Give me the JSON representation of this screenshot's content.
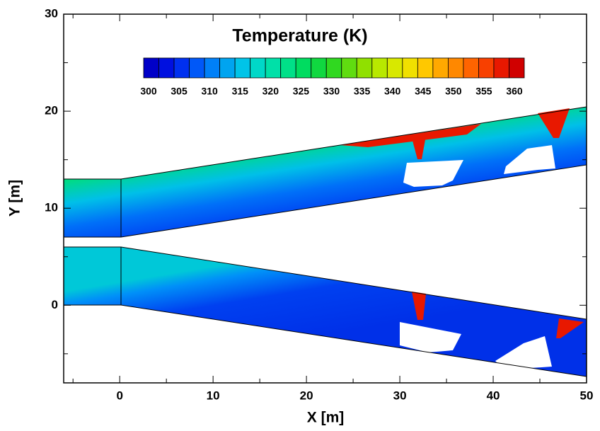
{
  "chart_data": {
    "type": "contour",
    "xlabel": "X [m]",
    "ylabel": "Y [m]",
    "xlim": [
      -6,
      50
    ],
    "ylim": [
      -8,
      30
    ],
    "xticks": [
      0,
      10,
      20,
      30,
      40,
      50
    ],
    "yticks": [
      0,
      10,
      20,
      30
    ],
    "xminorticks": [
      -5,
      5,
      15,
      25,
      35,
      45
    ],
    "yminorticks": [
      -5,
      5,
      15,
      25
    ],
    "colorbar": {
      "title": "Temperature (K)",
      "ticks": [
        300,
        305,
        310,
        315,
        320,
        325,
        330,
        335,
        340,
        345,
        350,
        355,
        360
      ],
      "colors": [
        "#0000c8",
        "#0010e0",
        "#0030f0",
        "#0058f8",
        "#0080f8",
        "#00a4f0",
        "#00c4e8",
        "#00d8c8",
        "#00e0a8",
        "#00e088",
        "#00dc60",
        "#10d840",
        "#30d820",
        "#60dc10",
        "#90e000",
        "#b8e800",
        "#d8e800",
        "#f0e000",
        "#ffc800",
        "#ffa800",
        "#ff8800",
        "#ff6400",
        "#f84000",
        "#e81800",
        "#d00000"
      ]
    }
  }
}
